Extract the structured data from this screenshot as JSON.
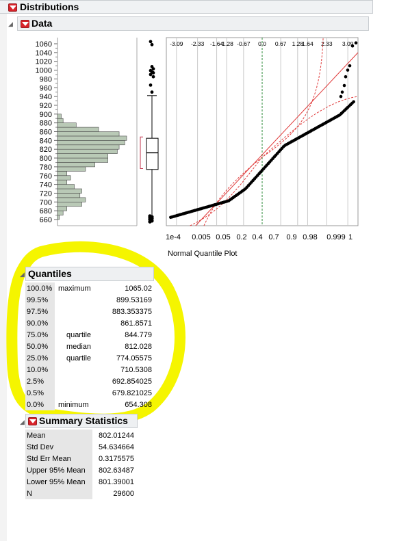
{
  "report": {
    "title": "Distributions"
  },
  "data_section": {
    "title": "Data"
  },
  "chart_data": {
    "type": "histogram",
    "y_ticks": [
      660,
      680,
      700,
      720,
      740,
      760,
      780,
      800,
      820,
      840,
      860,
      880,
      900,
      920,
      940,
      960,
      980,
      1000,
      1020,
      1040,
      1060
    ],
    "bins": [
      {
        "x": 660,
        "value": 1
      },
      {
        "x": 670,
        "value": 3
      },
      {
        "x": 680,
        "value": 5
      },
      {
        "x": 690,
        "value": 13
      },
      {
        "x": 700,
        "value": 15
      },
      {
        "x": 710,
        "value": 12
      },
      {
        "x": 720,
        "value": 13
      },
      {
        "x": 730,
        "value": 9
      },
      {
        "x": 740,
        "value": 5
      },
      {
        "x": 750,
        "value": 7
      },
      {
        "x": 760,
        "value": 5
      },
      {
        "x": 770,
        "value": 15
      },
      {
        "x": 780,
        "value": 20
      },
      {
        "x": 790,
        "value": 27
      },
      {
        "x": 800,
        "value": 27
      },
      {
        "x": 810,
        "value": 32
      },
      {
        "x": 820,
        "value": 33
      },
      {
        "x": 830,
        "value": 36
      },
      {
        "x": 840,
        "value": 37
      },
      {
        "x": 850,
        "value": 33
      },
      {
        "x": 860,
        "value": 22
      },
      {
        "x": 870,
        "value": 10
      },
      {
        "x": 880,
        "value": 3
      },
      {
        "x": 890,
        "value": 2
      }
    ],
    "quantile_plot": {
      "title": "Normal Quantile Plot",
      "top_ticks": [
        "-3.09",
        "-2.33",
        "-1.64",
        "-1.28",
        "-0.67",
        "0.0",
        "0.67",
        "1.28",
        "1.64",
        "2.33",
        "3.09"
      ],
      "bottom_ticks": [
        "1e-4",
        "0.005",
        "0.05",
        "0.2",
        "0.4",
        "0.7",
        "0.9",
        "0.98",
        "0.999",
        "1"
      ]
    }
  },
  "quantiles": {
    "title": "Quantiles",
    "rows": [
      {
        "pct": "100.0%",
        "label": "maximum",
        "value": "1065.02"
      },
      {
        "pct": "99.5%",
        "label": "",
        "value": "899.53169"
      },
      {
        "pct": "97.5%",
        "label": "",
        "value": "883.353375"
      },
      {
        "pct": "90.0%",
        "label": "",
        "value": "861.8571"
      },
      {
        "pct": "75.0%",
        "label": "quartile",
        "value": "844.779"
      },
      {
        "pct": "50.0%",
        "label": "median",
        "value": "812.028"
      },
      {
        "pct": "25.0%",
        "label": "quartile",
        "value": "774.05575"
      },
      {
        "pct": "10.0%",
        "label": "",
        "value": "710.5308"
      },
      {
        "pct": "2.5%",
        "label": "",
        "value": "692.854025"
      },
      {
        "pct": "0.5%",
        "label": "",
        "value": "679.821025"
      },
      {
        "pct": "0.0%",
        "label": "minimum",
        "value": "654.308"
      }
    ]
  },
  "summary": {
    "title": "Summary Statistics",
    "rows": [
      {
        "label": "Mean",
        "value": "802.01244"
      },
      {
        "label": "Std Dev",
        "value": "54.634664"
      },
      {
        "label": "Std Err Mean",
        "value": "0.3175575"
      },
      {
        "label": "Upper 95% Mean",
        "value": "802.63487"
      },
      {
        "label": "Lower 95% Mean",
        "value": "801.39001"
      },
      {
        "label": "N",
        "value": "29600"
      }
    ]
  },
  "colors": {
    "highlight": "#f5f500",
    "bars": "#b9c9b6",
    "accent": "#d8232a"
  }
}
